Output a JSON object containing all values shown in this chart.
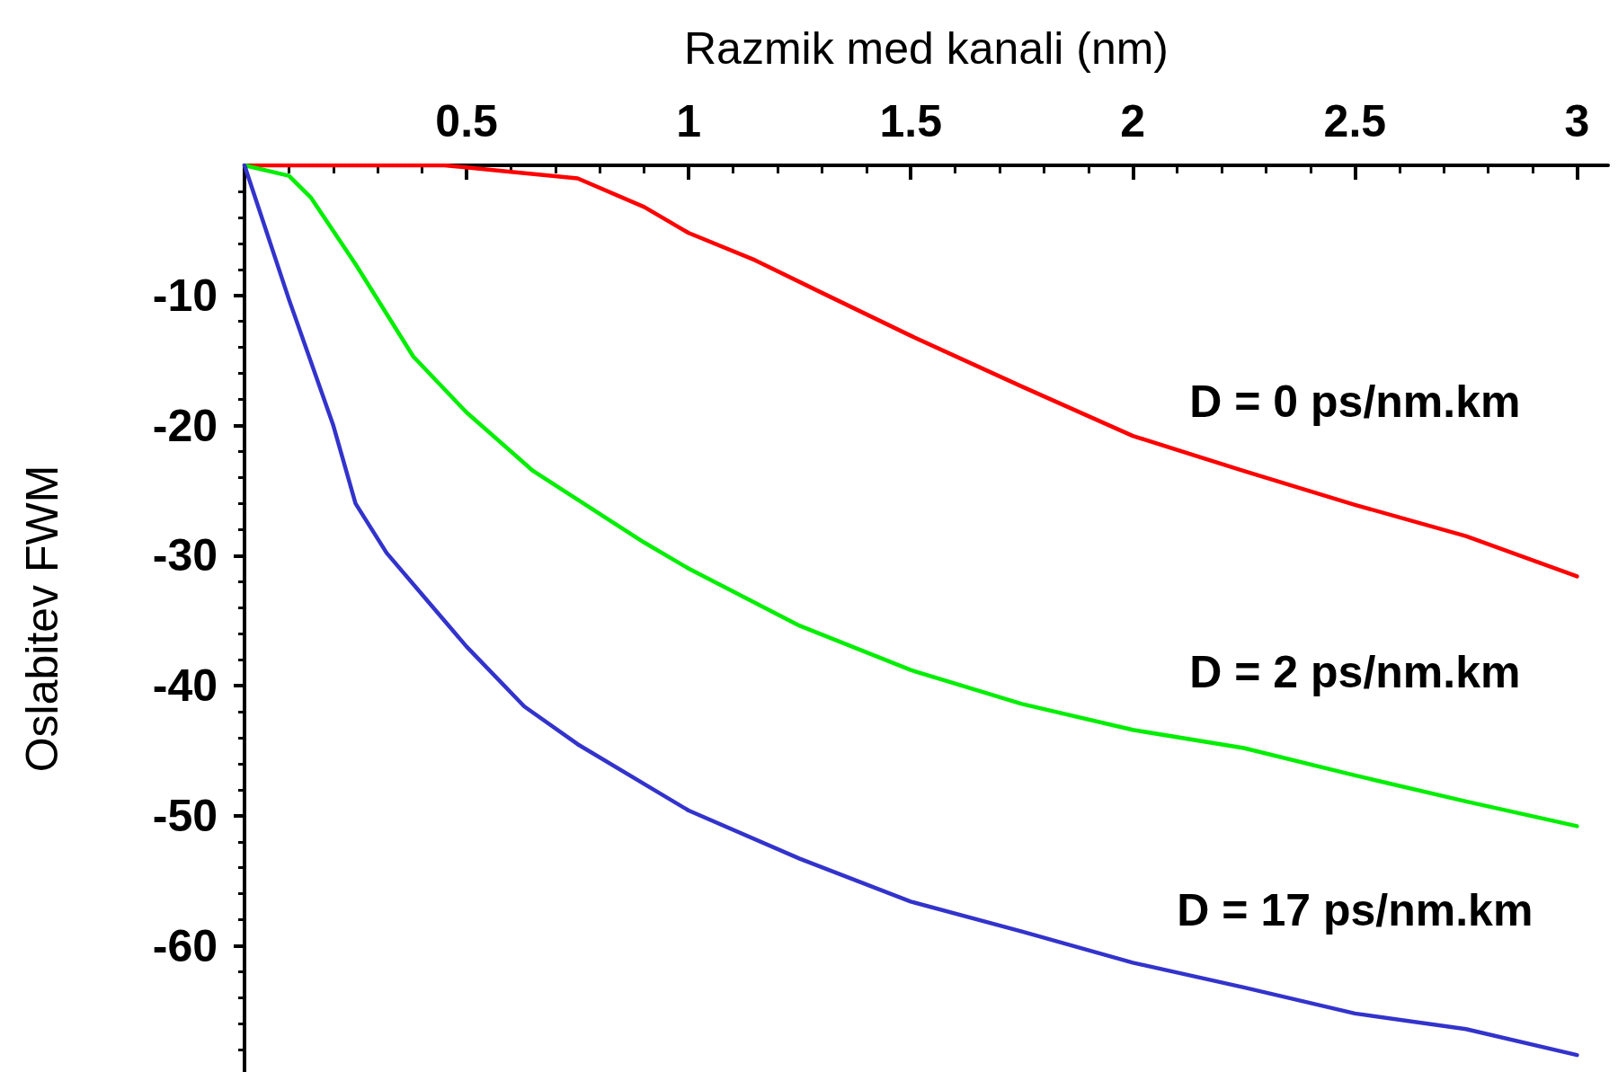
{
  "chart_data": {
    "type": "line",
    "xlabel": "Razmik med kanali (nm)",
    "ylabel": "Oslabitev FWM",
    "xlim": [
      0,
      3.07
    ],
    "xticks": [
      0.5,
      1,
      1.5,
      2,
      2.5,
      3
    ],
    "ylim": [
      -69.7,
      0
    ],
    "yticks": [
      -60,
      -50,
      -40,
      -30,
      -20,
      -10
    ],
    "grid": false,
    "legend": false,
    "marker": "none",
    "line_style": "solid",
    "series": [
      {
        "name": "D = 0 ps/nm.km",
        "color": "#ff0000",
        "x": [
          0,
          0.45,
          0.6,
          0.75,
          0.9,
          1.0,
          1.15,
          1.3,
          1.5,
          1.75,
          2.0,
          2.25,
          2.5,
          2.75,
          3.0
        ],
        "values": [
          0,
          0,
          -0.5,
          -1,
          -3.2,
          -5.2,
          -7.3,
          -9.8,
          -13.1,
          -17,
          -20.8,
          -23.5,
          -26.1,
          -28.5,
          -31.6
        ]
      },
      {
        "name": "D = 2 ps/nm.km",
        "color": "#00ee00",
        "x": [
          0,
          0.1,
          0.15,
          0.25,
          0.38,
          0.5,
          0.65,
          0.9,
          1.0,
          1.25,
          1.5,
          1.75,
          2.0,
          2.25,
          2.5,
          2.75,
          3.0
        ],
        "values": [
          0,
          -0.8,
          -2.5,
          -7.6,
          -14.7,
          -19,
          -23.5,
          -29,
          -31,
          -35.4,
          -38.8,
          -41.4,
          -43.4,
          -44.8,
          -46.9,
          -48.9,
          -50.8
        ]
      },
      {
        "name": "D = 17 ps/nm.km",
        "color": "#3333cc",
        "x": [
          0,
          0.1,
          0.2,
          0.25,
          0.32,
          0.4,
          0.5,
          0.63,
          0.75,
          1.0,
          1.25,
          1.5,
          1.75,
          2.0,
          2.25,
          2.5,
          2.75,
          3.0
        ],
        "values": [
          0,
          -10.3,
          -20,
          -26,
          -29.8,
          -33,
          -37,
          -41.6,
          -44.5,
          -49.6,
          -53.3,
          -56.6,
          -58.9,
          -61.3,
          -63.2,
          -65.2,
          -66.4,
          -68.4
        ]
      }
    ]
  }
}
